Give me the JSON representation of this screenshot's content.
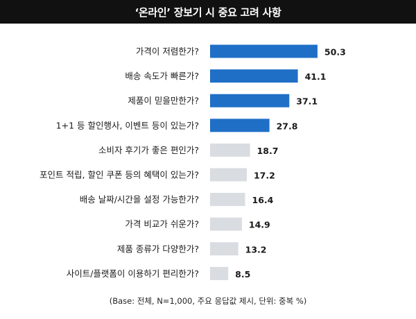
{
  "chart_data": {
    "type": "bar",
    "orientation": "horizontal",
    "title": "‘온라인’ 장보기 시 중요 고려 사항",
    "categories": [
      "가격이 저렴한가?",
      "배송 속도가 빠른가?",
      "제품이 믿을만한가?",
      "1+1 등 할인행사, 이벤트 등이 있는가?",
      "소비자 후기가 좋은 편인가?",
      "포인트 적립, 할인 쿠폰 등의 혜택이 있는가?",
      "배송 날짜/시간을 설정 가능한가?",
      "가격 비교가 쉬운가?",
      "제품 종류가 다양한가?",
      "사이트/플랫폼이 이용하기 편리한가?"
    ],
    "values": [
      50.3,
      41.1,
      37.1,
      27.8,
      18.7,
      17.2,
      16.4,
      14.9,
      13.2,
      8.5
    ],
    "value_labels": [
      "50.3",
      "41.1",
      "37.1",
      "27.8",
      "18.7",
      "17.2",
      "16.4",
      "14.9",
      "13.2",
      "8.5"
    ],
    "highlight_top_n": 4,
    "colors": {
      "highlight": "#1f6fc6",
      "normal": "#d9dce1"
    },
    "grid": false,
    "footnote": "(Base: 전체, N=1,000, 주요 응답값 제시, 단위: 중복 %)"
  }
}
